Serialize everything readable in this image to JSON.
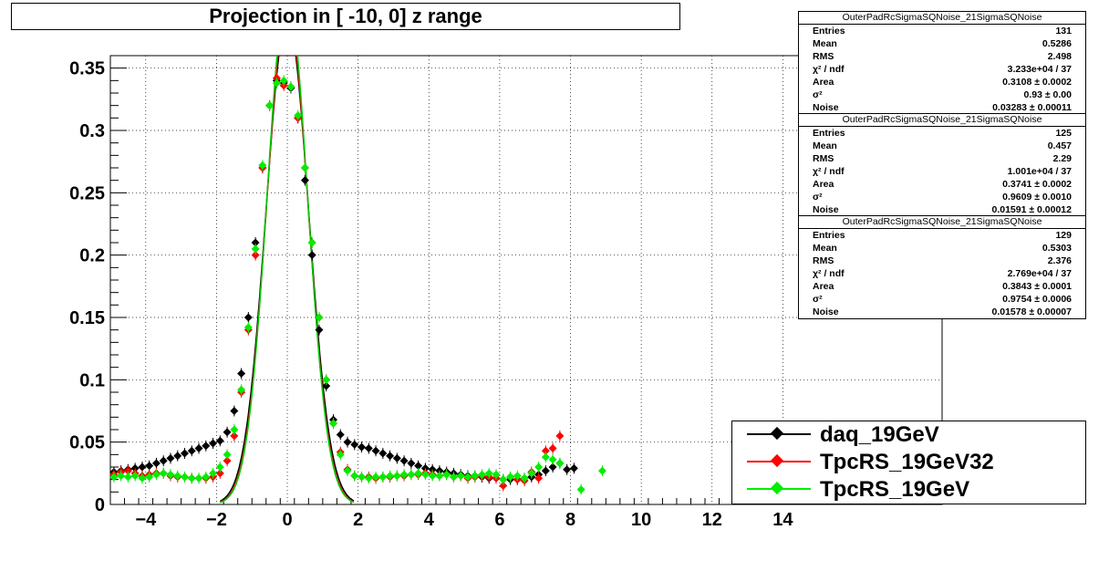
{
  "chart_data": {
    "type": "scatter",
    "title": "Projection in [ -10,   0] z range",
    "xlim": [
      -5,
      18.5
    ],
    "ylim": [
      0,
      0.36
    ],
    "x_ticks": [
      -4,
      -2,
      0,
      2,
      4,
      6,
      8,
      10,
      12,
      14
    ],
    "x_tick_labels": [
      "−4",
      "−2",
      "0",
      "2",
      "4",
      "6",
      "8",
      "10",
      "12",
      "14"
    ],
    "y_ticks": [
      0,
      0.05,
      0.1,
      0.15,
      0.2,
      0.25,
      0.3,
      0.35
    ],
    "y_tick_labels": [
      "0",
      "0.05",
      "0.1",
      "0.15",
      "0.2",
      "0.25",
      "0.3",
      "0.35"
    ],
    "grid": true,
    "legend_position": "bottom-right",
    "series": [
      {
        "name": "daq_19GeV",
        "color": "#000000",
        "x": [
          -4.9,
          -4.7,
          -4.5,
          -4.3,
          -4.1,
          -3.9,
          -3.7,
          -3.5,
          -3.3,
          -3.1,
          -2.9,
          -2.7,
          -2.5,
          -2.3,
          -2.1,
          -1.9,
          -1.7,
          -1.5,
          -1.3,
          -1.1,
          -0.9,
          -0.7,
          -0.5,
          -0.3,
          -0.1,
          0.1,
          0.3,
          0.5,
          0.7,
          0.9,
          1.1,
          1.3,
          1.5,
          1.7,
          1.9,
          2.1,
          2.3,
          2.5,
          2.7,
          2.9,
          3.1,
          3.3,
          3.5,
          3.7,
          3.9,
          4.1,
          4.3,
          4.5,
          4.7,
          4.9,
          5.1,
          5.3,
          5.5,
          5.7,
          5.9,
          6.1,
          6.3,
          6.5,
          6.7,
          6.9,
          7.1,
          7.3,
          7.5,
          7.7,
          7.9,
          8.1
        ],
        "y": [
          0.026,
          0.027,
          0.028,
          0.029,
          0.03,
          0.031,
          0.033,
          0.035,
          0.037,
          0.039,
          0.041,
          0.043,
          0.045,
          0.047,
          0.049,
          0.051,
          0.058,
          0.075,
          0.105,
          0.15,
          0.21,
          0.27,
          0.32,
          0.34,
          0.338,
          0.334,
          0.31,
          0.26,
          0.2,
          0.14,
          0.095,
          0.068,
          0.056,
          0.05,
          0.048,
          0.046,
          0.045,
          0.043,
          0.041,
          0.039,
          0.037,
          0.035,
          0.033,
          0.031,
          0.029,
          0.028,
          0.027,
          0.026,
          0.025,
          0.024,
          0.023,
          0.023,
          0.022,
          0.021,
          0.021,
          0.02,
          0.02,
          0.02,
          0.021,
          0.022,
          0.024,
          0.027,
          0.03,
          0.033,
          0.028,
          0.029
        ]
      },
      {
        "name": "TpcRS_19GeV32",
        "color": "#ff0000",
        "x": [
          -4.9,
          -4.7,
          -4.5,
          -4.3,
          -4.1,
          -3.9,
          -3.7,
          -3.5,
          -3.3,
          -3.1,
          -2.9,
          -2.7,
          -2.5,
          -2.3,
          -2.1,
          -1.9,
          -1.7,
          -1.5,
          -1.3,
          -1.1,
          -0.9,
          -0.7,
          -0.5,
          -0.3,
          -0.1,
          0.1,
          0.3,
          0.5,
          0.7,
          0.9,
          1.1,
          1.3,
          1.5,
          1.7,
          1.9,
          2.1,
          2.3,
          2.5,
          2.7,
          2.9,
          3.1,
          3.3,
          3.5,
          3.7,
          3.9,
          4.1,
          4.3,
          4.5,
          4.7,
          4.9,
          5.1,
          5.3,
          5.5,
          5.7,
          5.9,
          6.1,
          6.3,
          6.5,
          6.7,
          6.9,
          7.1,
          7.3,
          7.5,
          7.7
        ],
        "y": [
          0.024,
          0.026,
          0.027,
          0.025,
          0.023,
          0.024,
          0.025,
          0.025,
          0.023,
          0.022,
          0.022,
          0.021,
          0.021,
          0.021,
          0.022,
          0.025,
          0.035,
          0.055,
          0.09,
          0.14,
          0.2,
          0.27,
          0.32,
          0.342,
          0.336,
          0.335,
          0.31,
          0.27,
          0.21,
          0.15,
          0.1,
          0.065,
          0.042,
          0.028,
          0.023,
          0.022,
          0.022,
          0.021,
          0.022,
          0.022,
          0.023,
          0.023,
          0.024,
          0.024,
          0.025,
          0.024,
          0.023,
          0.024,
          0.022,
          0.023,
          0.021,
          0.022,
          0.023,
          0.022,
          0.021,
          0.015,
          0.022,
          0.02,
          0.019,
          0.026,
          0.021,
          0.043,
          0.045,
          0.055
        ]
      },
      {
        "name": "TpcRS_19GeV",
        "color": "#00ee00",
        "x": [
          -4.9,
          -4.7,
          -4.5,
          -4.3,
          -4.1,
          -3.9,
          -3.7,
          -3.5,
          -3.3,
          -3.1,
          -2.9,
          -2.7,
          -2.5,
          -2.3,
          -2.1,
          -1.9,
          -1.7,
          -1.5,
          -1.3,
          -1.1,
          -0.9,
          -0.7,
          -0.5,
          -0.3,
          -0.1,
          0.1,
          0.3,
          0.5,
          0.7,
          0.9,
          1.1,
          1.3,
          1.5,
          1.7,
          1.9,
          2.1,
          2.3,
          2.5,
          2.7,
          2.9,
          3.1,
          3.3,
          3.5,
          3.7,
          3.9,
          4.1,
          4.3,
          4.5,
          4.7,
          4.9,
          5.1,
          5.3,
          5.5,
          5.7,
          5.9,
          6.1,
          6.3,
          6.5,
          6.7,
          6.9,
          7.1,
          7.3,
          7.5,
          7.7,
          8.3,
          8.9
        ],
        "y": [
          0.022,
          0.023,
          0.022,
          0.023,
          0.021,
          0.022,
          0.024,
          0.025,
          0.024,
          0.023,
          0.022,
          0.021,
          0.021,
          0.022,
          0.025,
          0.03,
          0.04,
          0.06,
          0.092,
          0.142,
          0.205,
          0.272,
          0.32,
          0.338,
          0.34,
          0.335,
          0.312,
          0.27,
          0.21,
          0.15,
          0.1,
          0.065,
          0.04,
          0.027,
          0.023,
          0.022,
          0.021,
          0.022,
          0.022,
          0.023,
          0.023,
          0.024,
          0.024,
          0.025,
          0.024,
          0.023,
          0.023,
          0.024,
          0.022,
          0.023,
          0.022,
          0.023,
          0.024,
          0.025,
          0.024,
          0.02,
          0.022,
          0.023,
          0.021,
          0.025,
          0.03,
          0.038,
          0.036,
          0.033,
          0.012,
          0.027
        ]
      }
    ],
    "fit_curves": [
      {
        "color": "#000000",
        "peak": 0.39,
        "sigma": 0.6
      },
      {
        "color": "#ff0000",
        "peak": 0.4,
        "sigma": 0.58
      },
      {
        "color": "#00cc00",
        "peak": 0.41,
        "sigma": 0.57
      }
    ]
  },
  "stats_boxes": [
    {
      "title": "OuterPadRcSigmaSQNoise_21SigmaSQNoise",
      "rows": [
        {
          "label": "Entries",
          "value": "131"
        },
        {
          "label": "Mean",
          "value": "0.5286"
        },
        {
          "label": "RMS",
          "value": "2.498"
        },
        {
          "label": "χ² / ndf",
          "value": "3.233e+04 / 37"
        },
        {
          "label": "Area",
          "value": "0.3108 ± 0.0002"
        },
        {
          "label": "σ²",
          "value": "0.93 ± 0.00"
        },
        {
          "label": "Noise",
          "value": "0.03283 ± 0.00011"
        }
      ]
    },
    {
      "title": "OuterPadRcSigmaSQNoise_21SigmaSQNoise",
      "rows": [
        {
          "label": "Entries",
          "value": "125"
        },
        {
          "label": "Mean",
          "value": "0.457"
        },
        {
          "label": "RMS",
          "value": "2.29"
        },
        {
          "label": "χ² / ndf",
          "value": "1.001e+04 / 37"
        },
        {
          "label": "Area",
          "value": "0.3741 ± 0.0002"
        },
        {
          "label": "σ²",
          "value": "0.9609 ± 0.0010"
        },
        {
          "label": "Noise",
          "value": "0.01591 ± 0.00012"
        }
      ]
    },
    {
      "title": "OuterPadRcSigmaSQNoise_21SigmaSQNoise",
      "rows": [
        {
          "label": "Entries",
          "value": "129"
        },
        {
          "label": "Mean",
          "value": "0.5303"
        },
        {
          "label": "RMS",
          "value": "2.376"
        },
        {
          "label": "χ² / ndf",
          "value": "2.769e+04 / 37"
        },
        {
          "label": "Area",
          "value": "0.3843 ± 0.0001"
        },
        {
          "label": "σ²",
          "value": "0.9754 ± 0.0006"
        },
        {
          "label": "Noise",
          "value": "0.01578 ± 0.00007"
        }
      ]
    }
  ],
  "legend": [
    {
      "label": "daq_19GeV",
      "color": "#000000"
    },
    {
      "label": "TpcRS_19GeV32",
      "color": "#ff0000"
    },
    {
      "label": "TpcRS_19GeV",
      "color": "#00ee00"
    }
  ]
}
